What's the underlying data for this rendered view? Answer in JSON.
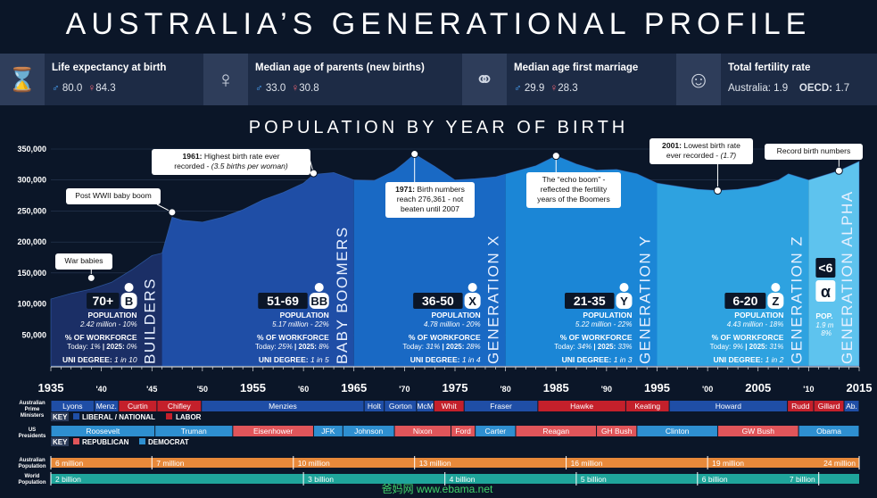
{
  "title": "AUSTRALIA’S GENERATIONAL PROFILE",
  "stats": [
    {
      "icon": "hourglass-icon",
      "label": "Life expectancy at birth",
      "male": "80.0",
      "female": "84.3"
    },
    {
      "icon": "pregnant-woman-icon",
      "label": "Median age of parents (new births)",
      "male": "33.0",
      "female": "30.8"
    },
    {
      "icon": "rings-icon",
      "label": "Median age first marriage",
      "male": "29.9",
      "female": "28.3"
    },
    {
      "icon": "baby-icon",
      "label": "Total fertility rate",
      "aus_label": "Australia:",
      "aus": "1.9",
      "oecd_label": "OECD:",
      "oecd": "1.7"
    }
  ],
  "chart_data": {
    "type": "area",
    "title": "POPULATION BY YEAR OF BIRTH",
    "xlim": [
      1935,
      2015
    ],
    "ylim": [
      0,
      350000
    ],
    "yticks": [
      "350,000",
      "300,000",
      "250,000",
      "200,000",
      "150,000",
      "100,000",
      "50,000"
    ],
    "ytick_values": [
      350000,
      300000,
      250000,
      200000,
      150000,
      100000,
      50000
    ],
    "xticks": [
      "1935",
      "'40",
      "'45",
      "'50",
      "1955",
      "'60",
      "1965",
      "'70",
      "1975",
      "'80",
      "1985",
      "'90",
      "1995",
      "'00",
      "2005",
      "'10",
      "2015"
    ],
    "xtick_values": [
      1935,
      1940,
      1945,
      1950,
      1955,
      1960,
      1965,
      1970,
      1975,
      1980,
      1985,
      1990,
      1995,
      2000,
      2005,
      2010,
      2015
    ],
    "series": [
      {
        "x": [
          1935,
          1937,
          1939,
          1941,
          1943,
          1945,
          1946,
          1947,
          1948,
          1950,
          1952,
          1954,
          1956,
          1958,
          1960,
          1961,
          1963,
          1965,
          1967,
          1969,
          1970,
          1971,
          1973,
          1975,
          1977,
          1979,
          1981,
          1983,
          1985,
          1987,
          1989,
          1991,
          1993,
          1995,
          1997,
          1999,
          2001,
          2003,
          2005,
          2007,
          2008,
          2010,
          2012,
          2013,
          2015
        ],
        "y": [
          108000,
          117000,
          124000,
          135000,
          155000,
          178000,
          182000,
          240000,
          235000,
          232000,
          240000,
          252000,
          268000,
          280000,
          295000,
          309000,
          312000,
          300000,
          299000,
          315000,
          328000,
          342000,
          322000,
          300000,
          302000,
          305000,
          314000,
          323000,
          339000,
          326000,
          316000,
          317000,
          310000,
          295000,
          290000,
          285000,
          283000,
          285000,
          290000,
          300000,
          310000,
          300000,
          310000,
          315000,
          330000
        ]
      }
    ],
    "annotations": [
      {
        "text": "War babies",
        "x": 1939,
        "y": 142000
      },
      {
        "text": "Post WWII baby boom",
        "x": 1947,
        "y": 248000
      },
      {
        "bold": "1961:",
        "text": " Highest birth rate ever",
        "text2": "recorded - ",
        "ital": "(3.5 births per woman)",
        "x": 1961,
        "y": 311000
      },
      {
        "bold": "1971:",
        "text": " Birth numbers",
        "text2": "reach 276,361 - not",
        "text3": "beaten until 2007",
        "x": 1971,
        "y": 342000
      },
      {
        "text": "The “echo boom” -",
        "text2": "reflected the fertility",
        "text3": "years of the Boomers",
        "x": 1985,
        "y": 339000
      },
      {
        "bold": "2001:",
        "text": " Lowest birth rate",
        "text2": "ever recorded - ",
        "ital": "(1.7)",
        "x": 2001,
        "y": 283000
      },
      {
        "text": "Record birth numbers",
        "x": 2013,
        "y": 315000
      }
    ],
    "generations": [
      {
        "name": "BUILDERS",
        "start": 1935,
        "end": 1946,
        "color": "#1b2f66",
        "age": "70+",
        "letter": "B",
        "pop": "2.42 million - 10%",
        "today": "1%",
        "f2025": "0%",
        "uni": "1 in 10"
      },
      {
        "name": "BABY BOOMERS",
        "start": 1946,
        "end": 1965,
        "color": "#1f4ea6",
        "age": "51-69",
        "letter": "BB",
        "pop": "5.17 million - 22%",
        "today": "25%",
        "f2025": "8%",
        "uni": "1 in 5"
      },
      {
        "name": "GENERATION X",
        "start": 1965,
        "end": 1980,
        "color": "#1969c4",
        "age": "36-50",
        "letter": "X",
        "pop": "4.78 million - 20%",
        "today": "31%",
        "f2025": "28%",
        "uni": "1 in 4"
      },
      {
        "name": "GENERATION Y",
        "start": 1980,
        "end": 1995,
        "color": "#1b86d6",
        "age": "21-35",
        "letter": "Y",
        "pop": "5.22 million - 22%",
        "today": "34%",
        "f2025": "33%",
        "uni": "1 in 3"
      },
      {
        "name": "GENERATION Z",
        "start": 1995,
        "end": 2010,
        "color": "#2ea2e0",
        "age": "6-20",
        "letter": "Z",
        "pop": "4.43 million - 18%",
        "today": "9%",
        "f2025": "31%",
        "uni": "1 in 2"
      },
      {
        "name": "GENERATION ALPHA",
        "start": 2010,
        "end": 2015,
        "color": "#5ec3ee",
        "age": "<6",
        "letter": "α",
        "pop": "1.9 m",
        "popshare": "8%",
        "pop_label": "POP."
      }
    ],
    "labels": {
      "population": "POPULATION",
      "workforce": "% OF WORKFORCE",
      "today": "Today:",
      "y2025": "2025:",
      "uni": "UNI DEGREE:"
    }
  },
  "pm": {
    "label": "Australian Prime Ministers",
    "key": "KEY",
    "lib": "LIBERAL / NATIONAL",
    "lab": "LABOR",
    "libcolor": "#1f4ea6",
    "labcolor": "#c4202b",
    "items": [
      {
        "n": "Lyons",
        "s": 1935,
        "e": 1939.3,
        "p": "L"
      },
      {
        "n": "Menz.",
        "s": 1939.3,
        "e": 1941.7,
        "p": "L"
      },
      {
        "n": "Curtin",
        "s": 1941.7,
        "e": 1945.5,
        "p": "A"
      },
      {
        "n": "Chifley",
        "s": 1945.5,
        "e": 1949.9,
        "p": "A"
      },
      {
        "n": "Menzies",
        "s": 1949.9,
        "e": 1966,
        "p": "L"
      },
      {
        "n": "Holt",
        "s": 1966,
        "e": 1968,
        "p": "L"
      },
      {
        "n": "Gorton",
        "s": 1968,
        "e": 1971.2,
        "p": "L"
      },
      {
        "n": "McM",
        "s": 1971.2,
        "e": 1972.9,
        "p": "L"
      },
      {
        "n": "Whit",
        "s": 1972.9,
        "e": 1975.9,
        "p": "A"
      },
      {
        "n": "Fraser",
        "s": 1975.9,
        "e": 1983.2,
        "p": "L"
      },
      {
        "n": "Hawke",
        "s": 1983.2,
        "e": 1991.9,
        "p": "A"
      },
      {
        "n": "Keating",
        "s": 1991.9,
        "e": 1996.2,
        "p": "A"
      },
      {
        "n": "Howard",
        "s": 1996.2,
        "e": 2007.9,
        "p": "L"
      },
      {
        "n": "Rudd",
        "s": 2007.9,
        "e": 2010.5,
        "p": "A"
      },
      {
        "n": "Gillard",
        "s": 2010.5,
        "e": 2013.5,
        "p": "A"
      },
      {
        "n": "Ab.",
        "s": 2013.5,
        "e": 2015,
        "p": "L"
      }
    ]
  },
  "us": {
    "label": "US Presidents",
    "key": "KEY",
    "rep": "REPUBLICAN",
    "dem": "DEMOCRAT",
    "repcolor": "#e0555a",
    "demcolor": "#2e8fd0",
    "items": [
      {
        "n": "Roosevelt",
        "s": 1935,
        "e": 1945.3,
        "p": "D"
      },
      {
        "n": "Truman",
        "s": 1945.3,
        "e": 1953,
        "p": "D"
      },
      {
        "n": "Eisenhower",
        "s": 1953,
        "e": 1961,
        "p": "R"
      },
      {
        "n": "JFK",
        "s": 1961,
        "e": 1963.9,
        "p": "D"
      },
      {
        "n": "Johnson",
        "s": 1963.9,
        "e": 1969,
        "p": "D"
      },
      {
        "n": "Nixon",
        "s": 1969,
        "e": 1974.6,
        "p": "R"
      },
      {
        "n": "Ford",
        "s": 1974.6,
        "e": 1977,
        "p": "R"
      },
      {
        "n": "Carter",
        "s": 1977,
        "e": 1981,
        "p": "D"
      },
      {
        "n": "Reagan",
        "s": 1981,
        "e": 1989,
        "p": "R"
      },
      {
        "n": "GH Bush",
        "s": 1989,
        "e": 1993,
        "p": "R"
      },
      {
        "n": "Clinton",
        "s": 1993,
        "e": 2001,
        "p": "D"
      },
      {
        "n": "GW Bush",
        "s": 2001,
        "e": 2009,
        "p": "R"
      },
      {
        "n": "Obama",
        "s": 2009,
        "e": 2015,
        "p": "D"
      }
    ]
  },
  "aus_pop": {
    "label": "Australian Population",
    "color": "#e8893a",
    "items": [
      {
        "t": "6 million",
        "at": 1935
      },
      {
        "t": "7 million",
        "at": 1945
      },
      {
        "t": "10 million",
        "at": 1959
      },
      {
        "t": "13 million",
        "at": 1971
      },
      {
        "t": "16 million",
        "at": 1986
      },
      {
        "t": "19 million",
        "at": 2000
      },
      {
        "t": "24 million",
        "at": 2015
      }
    ]
  },
  "world_pop": {
    "label": "World Population",
    "color": "#1fa59b",
    "items": [
      {
        "t": "2 billion",
        "at": 1935
      },
      {
        "t": "3 billion",
        "at": 1960
      },
      {
        "t": "4 billion",
        "at": 1974
      },
      {
        "t": "5 billion",
        "at": 1987
      },
      {
        "t": "6 billion",
        "at": 1999
      },
      {
        "t": "7 billion",
        "at": 2011
      }
    ]
  },
  "watermark": "爸妈网 www.ebama.net"
}
